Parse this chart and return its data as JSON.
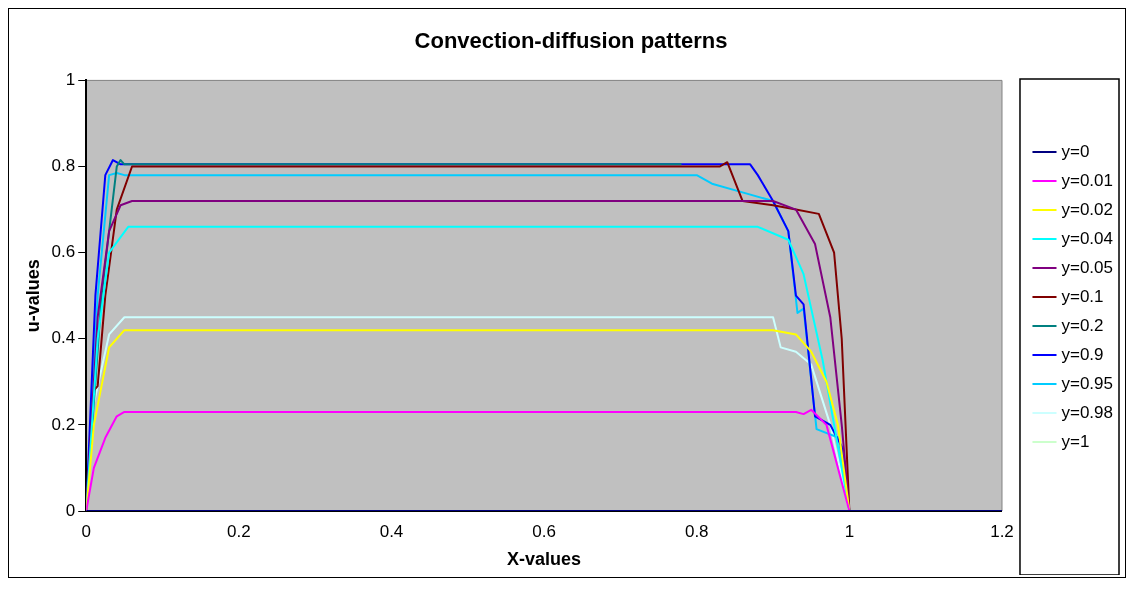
{
  "chart_data": {
    "type": "line",
    "title": "Convection-diffusion patterns",
    "xlabel": "X-values",
    "ylabel": "u-values",
    "xlim": [
      0,
      1.2
    ],
    "xticks": [
      0,
      0.2,
      0.4,
      0.6,
      0.8,
      1,
      1.2
    ],
    "ylim": [
      0,
      1
    ],
    "yticks": [
      0,
      0.2,
      0.4,
      0.6,
      0.8,
      1
    ],
    "grid": false,
    "legend": "right",
    "marker": "none",
    "line_style": "solid",
    "series": [
      {
        "name": "y=0",
        "color": "#000080",
        "x": [
          0,
          0.6,
          1,
          1.2
        ],
        "values": [
          0,
          0,
          0,
          0
        ]
      },
      {
        "name": "y=0.01",
        "color": "#ff00ff",
        "x": [
          0,
          0.01,
          0.025,
          0.04,
          0.05,
          0.93,
          0.94,
          0.95,
          0.97,
          1
        ],
        "values": [
          0,
          0.1,
          0.17,
          0.22,
          0.23,
          0.23,
          0.225,
          0.235,
          0.2,
          0
        ]
      },
      {
        "name": "y=0.02",
        "color": "#ffff00",
        "x": [
          0,
          0.01,
          0.03,
          0.05,
          0.9,
          0.93,
          0.95,
          0.97,
          0.985,
          1
        ],
        "values": [
          0,
          0.2,
          0.38,
          0.42,
          0.42,
          0.41,
          0.37,
          0.3,
          0.2,
          0
        ]
      },
      {
        "name": "y=0.04",
        "color": "#00ffff",
        "x": [
          0,
          0.015,
          0.03,
          0.055,
          0.88,
          0.92,
          0.94,
          0.965,
          0.98,
          1
        ],
        "values": [
          0,
          0.4,
          0.6,
          0.66,
          0.66,
          0.63,
          0.55,
          0.35,
          0.2,
          0
        ]
      },
      {
        "name": "y=0.05",
        "color": "#800080",
        "x": [
          0,
          0.015,
          0.03,
          0.045,
          0.06,
          0.9,
          0.93,
          0.955,
          0.975,
          0.99,
          1
        ],
        "values": [
          0,
          0.45,
          0.65,
          0.71,
          0.72,
          0.72,
          0.7,
          0.62,
          0.45,
          0.2,
          0
        ]
      },
      {
        "name": "y=0.1",
        "color": "#800000",
        "x": [
          0,
          0.01,
          0.015,
          0.025,
          0.04,
          0.06,
          0.83,
          0.84,
          0.86,
          0.9,
          0.93,
          0.96,
          0.98,
          0.99,
          0.995,
          1
        ],
        "values": [
          0,
          0.28,
          0.29,
          0.5,
          0.7,
          0.8,
          0.8,
          0.81,
          0.72,
          0.71,
          0.7,
          0.69,
          0.6,
          0.4,
          0.2,
          0
        ]
      },
      {
        "name": "y=0.2",
        "color": "#008080",
        "x": [
          0,
          0.02,
          0.04,
          0.045,
          0.05,
          0.78
        ],
        "values": [
          0,
          0.5,
          0.8,
          0.815,
          0.805,
          0.805
        ]
      },
      {
        "name": "y=0.9",
        "color": "#0000ff",
        "x": [
          0,
          0.012,
          0.025,
          0.035,
          0.045,
          0.87,
          0.88,
          0.9,
          0.92,
          0.93,
          0.94,
          0.955,
          0.975,
          0.99,
          1
        ],
        "values": [
          0,
          0.5,
          0.78,
          0.815,
          0.805,
          0.805,
          0.78,
          0.72,
          0.65,
          0.5,
          0.48,
          0.22,
          0.2,
          0.15,
          0
        ]
      },
      {
        "name": "y=0.95",
        "color": "#00ccff",
        "x": [
          0,
          0.015,
          0.03,
          0.04,
          0.05,
          0.8,
          0.82,
          0.86,
          0.9,
          0.92,
          0.932,
          0.94,
          0.957,
          0.986,
          1
        ],
        "values": [
          0,
          0.5,
          0.78,
          0.785,
          0.78,
          0.78,
          0.76,
          0.74,
          0.72,
          0.65,
          0.46,
          0.47,
          0.19,
          0.17,
          0
        ]
      },
      {
        "name": "y=0.98",
        "color": "#ccffff",
        "x": [
          0,
          0.01,
          0.03,
          0.05,
          0.9,
          0.91,
          0.93,
          0.95,
          0.975,
          1
        ],
        "values": [
          0,
          0.25,
          0.41,
          0.45,
          0.45,
          0.38,
          0.37,
          0.34,
          0.2,
          0
        ]
      },
      {
        "name": "y=1",
        "color": "#ccffcc",
        "values": [
          null
        ]
      }
    ]
  }
}
